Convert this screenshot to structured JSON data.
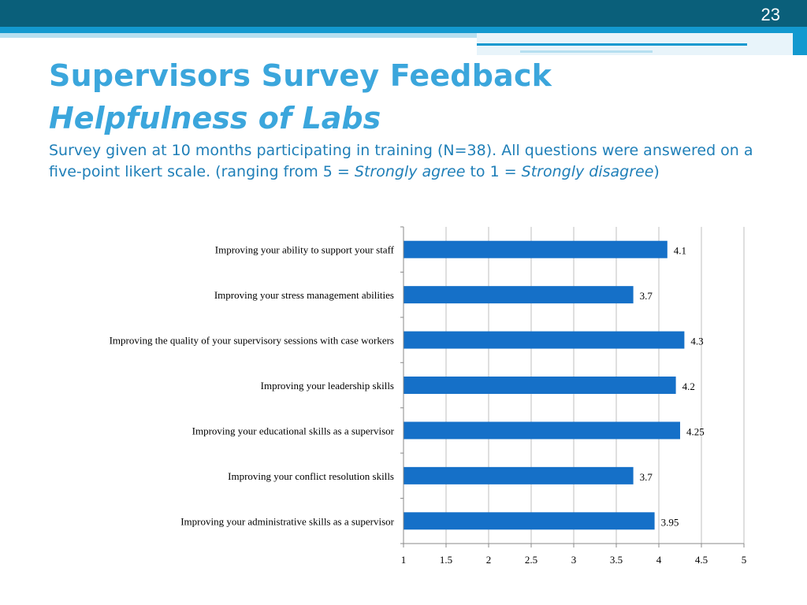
{
  "slide": {
    "page_number": "23",
    "title": "Supervisors Survey Feedback",
    "subtitle": "Helpfulness of Labs",
    "description": {
      "part1": "Survey given at 10 months participating in training (N=38). All questions were answered on a five-point likert scale. (ranging from 5 = ",
      "strong_agree": "Strongly agree",
      "part2": " to 1 = ",
      "strong_disagree": "Strongly disagree",
      "part3": ")"
    }
  },
  "chart_data": {
    "type": "bar",
    "orientation": "horizontal",
    "title": "",
    "xlabel": "",
    "ylabel": "",
    "xlim": [
      1,
      5
    ],
    "x_ticks": [
      "1",
      "1.5",
      "2",
      "2.5",
      "3",
      "3.5",
      "4",
      "4.5",
      "5"
    ],
    "grid": true,
    "bar_color": "#1570c8",
    "categories": [
      "Improving your ability to support your staff",
      "Improving your stress management abilities",
      "Improving the quality of your supervisory sessions with case workers",
      "Improving your leadership skills",
      "Improving your educational skills as a supervisor",
      "Improving your conflict resolution skills",
      "Improving your administrative skills as a supervisor"
    ],
    "values": [
      4.1,
      3.7,
      4.3,
      4.2,
      4.25,
      3.7,
      3.95
    ],
    "value_labels": [
      "4.1",
      "3.7",
      "4.3",
      "4.2",
      "4.25",
      "3.7",
      "3.95"
    ]
  }
}
